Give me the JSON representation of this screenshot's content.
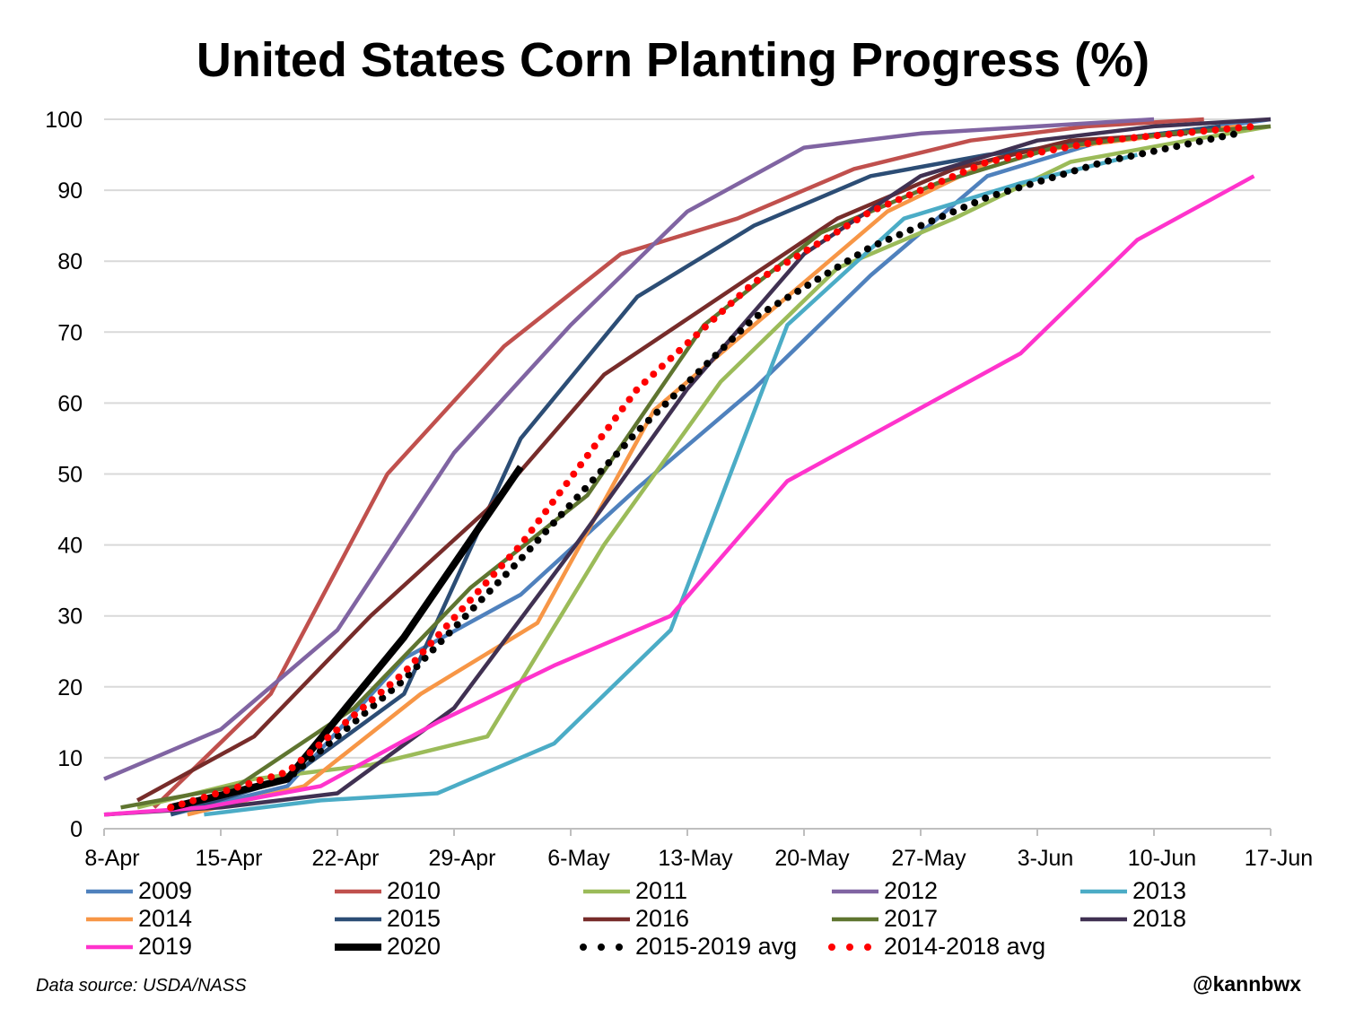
{
  "chart_data": {
    "type": "line",
    "title": "United States Corn Planting Progress (%)",
    "xlabel": "",
    "ylabel": "",
    "x_ticks": [
      "8-Apr",
      "15-Apr",
      "22-Apr",
      "29-Apr",
      "6-May",
      "13-May",
      "20-May",
      "27-May",
      "3-Jun",
      "10-Jun",
      "17-Jun"
    ],
    "y_ticks": [
      0,
      10,
      20,
      30,
      40,
      50,
      60,
      70,
      80,
      90,
      100
    ],
    "ylim": [
      0,
      100
    ],
    "xlim": [
      "8-Apr",
      "17-Jun"
    ],
    "grid": "horizontal",
    "legend_position": "bottom",
    "series": [
      {
        "name": "2009",
        "color": "#4f81bd",
        "style": "solid",
        "x": [
          "12-Apr",
          "19-Apr",
          "26-Apr",
          "3-May",
          "10-May",
          "17-May",
          "24-May",
          "31-May",
          "7-Jun",
          "14-Jun",
          "17-Jun"
        ],
        "values": [
          2,
          6,
          24,
          33,
          48,
          62,
          78,
          92,
          97,
          99,
          100
        ]
      },
      {
        "name": "2010",
        "color": "#c0504d",
        "style": "solid",
        "x": [
          "11-Apr",
          "18-Apr",
          "25-Apr",
          "2-May",
          "9-May",
          "16-May",
          "23-May",
          "30-May",
          "6-Jun",
          "13-Jun"
        ],
        "values": [
          3,
          19,
          50,
          68,
          81,
          86,
          93,
          97,
          99,
          100
        ]
      },
      {
        "name": "2011",
        "color": "#9bbb59",
        "style": "solid",
        "x": [
          "10-Apr",
          "17-Apr",
          "24-Apr",
          "1-May",
          "8-May",
          "15-May",
          "22-May",
          "29-May",
          "5-Jun",
          "12-Jun",
          "17-Jun"
        ],
        "values": [
          3,
          7,
          9,
          13,
          40,
          63,
          79,
          86,
          94,
          97,
          99
        ]
      },
      {
        "name": "2012",
        "color": "#8064a2",
        "style": "solid",
        "x": [
          "8-Apr",
          "15-Apr",
          "22-Apr",
          "29-Apr",
          "6-May",
          "13-May",
          "20-May",
          "27-May",
          "3-Jun",
          "10-Jun"
        ],
        "values": [
          7,
          14,
          28,
          53,
          71,
          87,
          96,
          98,
          99,
          100
        ]
      },
      {
        "name": "2013",
        "color": "#4bacc6",
        "style": "solid",
        "x": [
          "14-Apr",
          "21-Apr",
          "28-Apr",
          "5-May",
          "12-May",
          "19-May",
          "26-May",
          "2-Jun",
          "9-Jun"
        ],
        "values": [
          2,
          4,
          5,
          12,
          28,
          71,
          86,
          91,
          95
        ]
      },
      {
        "name": "2014",
        "color": "#f79646",
        "style": "solid",
        "x": [
          "13-Apr",
          "20-Apr",
          "27-Apr",
          "4-May",
          "11-May",
          "18-May",
          "25-May",
          "1-Jun",
          "8-Jun",
          "15-Jun"
        ],
        "values": [
          2,
          6,
          19,
          29,
          59,
          73,
          87,
          95,
          97,
          99
        ]
      },
      {
        "name": "2015",
        "color": "#2c4d75",
        "style": "solid",
        "x": [
          "12-Apr",
          "19-Apr",
          "26-Apr",
          "3-May",
          "10-May",
          "17-May",
          "24-May",
          "31-May",
          "7-Jun",
          "14-Jun"
        ],
        "values": [
          2,
          7,
          19,
          55,
          75,
          85,
          92,
          95,
          97,
          99
        ]
      },
      {
        "name": "2016",
        "color": "#772c2a",
        "style": "solid",
        "x": [
          "10-Apr",
          "17-Apr",
          "24-Apr",
          "1-May",
          "8-May",
          "15-May",
          "22-May",
          "29-May",
          "5-Jun",
          "12-Jun"
        ],
        "values": [
          4,
          13,
          30,
          45,
          64,
          75,
          86,
          93,
          97,
          98
        ]
      },
      {
        "name": "2017",
        "color": "#5f7530",
        "style": "solid",
        "x": [
          "9-Apr",
          "16-Apr",
          "23-Apr",
          "30-Apr",
          "7-May",
          "14-May",
          "21-May",
          "28-May",
          "4-Jun",
          "11-Jun",
          "17-Jun"
        ],
        "values": [
          3,
          6,
          17,
          34,
          47,
          71,
          84,
          91,
          96,
          98,
          99
        ]
      },
      {
        "name": "2018",
        "color": "#403152",
        "style": "solid",
        "x": [
          "8-Apr",
          "15-Apr",
          "22-Apr",
          "29-Apr",
          "6-May",
          "13-May",
          "20-May",
          "27-May",
          "3-Jun",
          "10-Jun",
          "17-Jun"
        ],
        "values": [
          2,
          3,
          5,
          17,
          39,
          62,
          81,
          92,
          97,
          99,
          100
        ]
      },
      {
        "name": "2019",
        "color": "#ff33cc",
        "style": "solid",
        "x": [
          "8-Apr",
          "14-Apr",
          "21-Apr",
          "28-Apr",
          "5-May",
          "12-May",
          "19-May",
          "26-May",
          "2-Jun",
          "9-Jun",
          "16-Jun"
        ],
        "values": [
          2,
          3,
          6,
          15,
          23,
          30,
          49,
          58,
          67,
          83,
          92
        ]
      },
      {
        "name": "2020",
        "color": "#000000",
        "style": "bold",
        "x": [
          "12-Apr",
          "19-Apr",
          "26-Apr",
          "3-May"
        ],
        "values": [
          3,
          7,
          27,
          51
        ]
      },
      {
        "name": "2015-2019 avg",
        "color": "#000000",
        "style": "dotted",
        "x": [
          "12-Apr",
          "19-Apr",
          "26-Apr",
          "3-May",
          "10-May",
          "17-May",
          "24-May",
          "31-May",
          "7-Jun",
          "15-Jun"
        ],
        "values": [
          3,
          7,
          21,
          38,
          56,
          72,
          82,
          89,
          94,
          98
        ]
      },
      {
        "name": "2014-2018 avg",
        "color": "#ff0000",
        "style": "dotted",
        "x": [
          "12-Apr",
          "19-Apr",
          "26-Apr",
          "3-May",
          "10-May",
          "17-May",
          "24-May",
          "31-May",
          "7-Jun",
          "16-Jun"
        ],
        "values": [
          3,
          8,
          22,
          40,
          62,
          77,
          87,
          94,
          97,
          99
        ]
      }
    ]
  },
  "footer": {
    "source": "Data source: USDA/NASS",
    "handle": "@kannbwx"
  }
}
